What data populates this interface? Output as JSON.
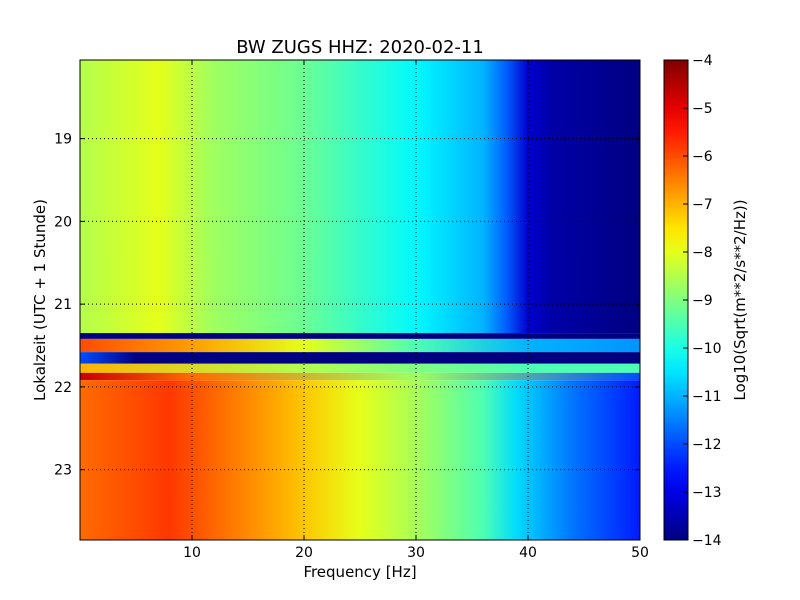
{
  "chart_data": {
    "type": "heatmap",
    "title": "BW ZUGS HHZ: 2020-02-11",
    "xlabel": "Frequency [Hz]",
    "ylabel": "Lokalzeit (UTC + 1 Stunde)",
    "xlim": [
      0,
      50
    ],
    "ylim": [
      18.05,
      23.85
    ],
    "y_inverted": true,
    "x_ticks": [
      10,
      20,
      30,
      40,
      50
    ],
    "y_ticks": [
      19,
      20,
      21,
      22,
      23
    ],
    "grid": true,
    "colormap": "jet",
    "colorbar": {
      "label": "Log10(Sqrt(m**2/s**2/Hz))",
      "min": -14,
      "max": -4,
      "ticks": [
        -4,
        -5,
        -6,
        -7,
        -8,
        -9,
        -10,
        -11,
        -12,
        -13,
        -14
      ]
    },
    "series": [
      {
        "time_range": [
          18.05,
          21.35
        ],
        "profile": [
          {
            "freq": 0,
            "value": -8.5
          },
          {
            "freq": 7,
            "value": -8.0
          },
          {
            "freq": 12,
            "value": -8.7
          },
          {
            "freq": 20,
            "value": -9.2
          },
          {
            "freq": 30,
            "value": -10.3
          },
          {
            "freq": 36,
            "value": -11.0
          },
          {
            "freq": 38,
            "value": -11.8
          },
          {
            "freq": 40,
            "value": -13.2
          },
          {
            "freq": 42,
            "value": -13.6
          },
          {
            "freq": 50,
            "value": -14.0
          }
        ]
      },
      {
        "time_range": [
          21.35,
          21.42
        ],
        "profile": [
          {
            "freq": 0,
            "value": -14.0
          },
          {
            "freq": 50,
            "value": -14.0
          }
        ]
      },
      {
        "time_range": [
          21.42,
          21.58
        ],
        "profile": [
          {
            "freq": 0,
            "value": -6.0
          },
          {
            "freq": 10,
            "value": -6.8
          },
          {
            "freq": 20,
            "value": -8.0
          },
          {
            "freq": 30,
            "value": -9.5
          },
          {
            "freq": 40,
            "value": -11.0
          },
          {
            "freq": 50,
            "value": -11.3
          }
        ]
      },
      {
        "time_range": [
          21.58,
          21.72
        ],
        "profile": [
          {
            "freq": 0,
            "value": -12.0
          },
          {
            "freq": 5,
            "value": -14.0
          },
          {
            "freq": 50,
            "value": -14.0
          }
        ]
      },
      {
        "time_range": [
          21.72,
          21.83
        ],
        "profile": [
          {
            "freq": 0,
            "value": -7.0
          },
          {
            "freq": 20,
            "value": -8.5
          },
          {
            "freq": 40,
            "value": -9.5
          },
          {
            "freq": 50,
            "value": -9.5
          }
        ]
      },
      {
        "time_range": [
          21.83,
          21.92
        ],
        "profile": [
          {
            "freq": 0,
            "value": -4.7
          },
          {
            "freq": 10,
            "value": -6.3
          },
          {
            "freq": 30,
            "value": -8.7
          },
          {
            "freq": 50,
            "value": -12.0
          }
        ]
      },
      {
        "time_range": [
          21.92,
          23.85
        ],
        "profile": [
          {
            "freq": 0,
            "value": -6.3
          },
          {
            "freq": 8,
            "value": -5.8
          },
          {
            "freq": 15,
            "value": -6.6
          },
          {
            "freq": 20,
            "value": -7.2
          },
          {
            "freq": 25,
            "value": -8.0
          },
          {
            "freq": 30,
            "value": -8.6
          },
          {
            "freq": 36,
            "value": -9.5
          },
          {
            "freq": 39,
            "value": -10.6
          },
          {
            "freq": 44,
            "value": -11.6
          },
          {
            "freq": 50,
            "value": -12.5
          }
        ]
      }
    ]
  }
}
